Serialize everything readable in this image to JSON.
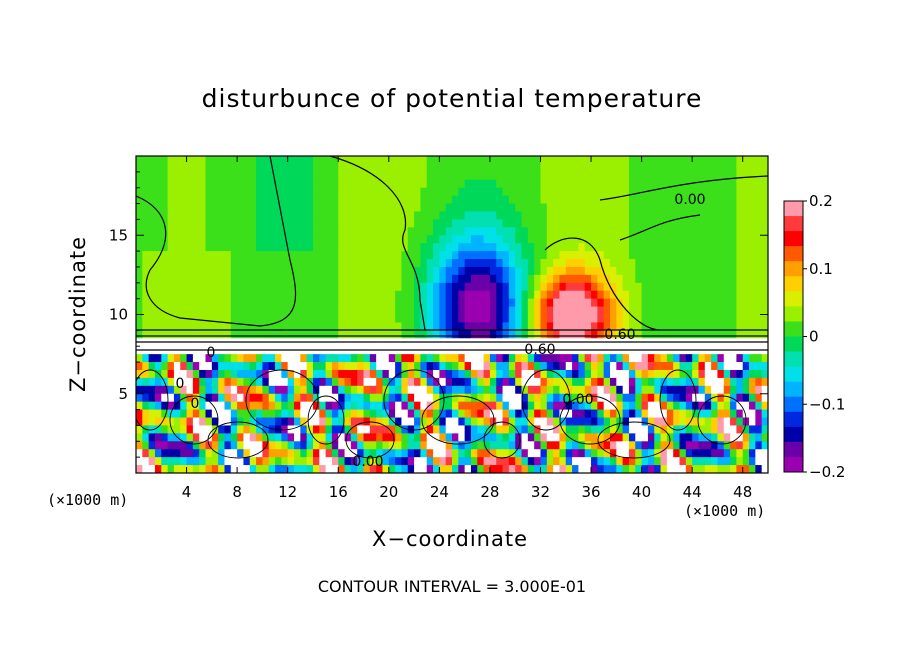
{
  "chart_data": {
    "type": "heatmap",
    "title": "disturbunce of potential temperature",
    "xlabel": "X−coordinate",
    "ylabel": "Z−coordinate",
    "x_unit_left": "(×1000 m)",
    "x_unit_right": "(×1000 m)",
    "x_ticks": [
      "4",
      "8",
      "12",
      "16",
      "20",
      "24",
      "28",
      "32",
      "36",
      "40",
      "44",
      "48"
    ],
    "x_tick_values": [
      4,
      8,
      12,
      16,
      20,
      24,
      28,
      32,
      36,
      40,
      44,
      48
    ],
    "y_ticks": [
      "5",
      "10",
      "15"
    ],
    "y_tick_values": [
      5,
      10,
      15
    ],
    "xlim": [
      0,
      50
    ],
    "ylim": [
      0,
      20
    ],
    "colorbar": {
      "range": [
        -0.2,
        0.2
      ],
      "tick_labels": [
        "0.2",
        "0.1",
        "0",
        "−0.1",
        "−0.2"
      ],
      "tick_values": [
        0.2,
        0.1,
        0,
        -0.1,
        -0.2
      ],
      "colors": [
        "#ff9aaa",
        "#ff3a3a",
        "#ff0000",
        "#ff5a00",
        "#ffa000",
        "#ffd000",
        "#d8f000",
        "#9af000",
        "#3ce01a",
        "#00d85a",
        "#00e0b0",
        "#00e0e8",
        "#00b4ff",
        "#0070ff",
        "#0028e0",
        "#0000a8",
        "#6a00a8",
        "#9a00b0"
      ]
    },
    "contour_labels": [
      "0.00",
      "0.60",
      "0.60",
      "0.00",
      "0.00",
      "0",
      "0",
      "0"
    ],
    "contour_interval_text": "CONTOUR INTERVAL =  3.000E-01"
  }
}
